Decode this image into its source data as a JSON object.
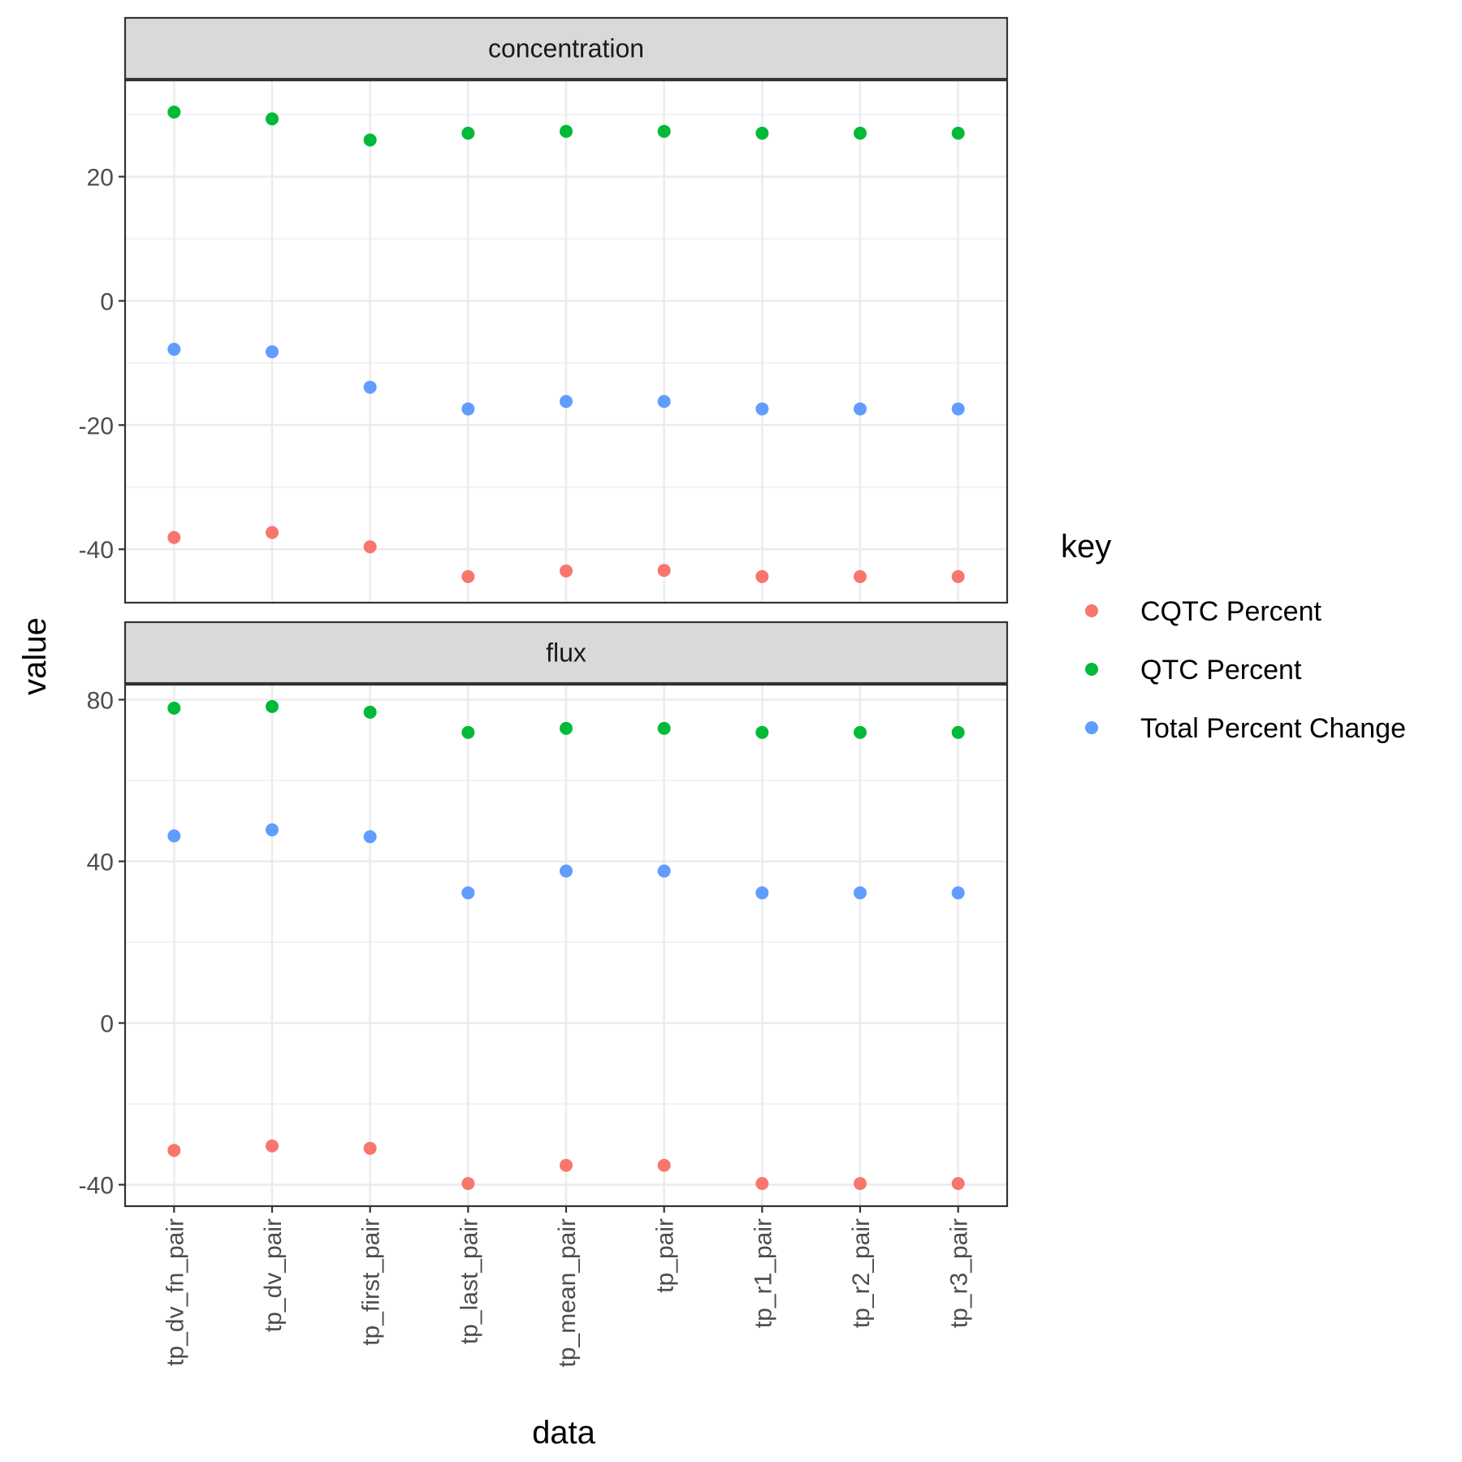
{
  "chart_data": {
    "type": "scatter",
    "xlabel": "data",
    "ylabel": "value",
    "categories": [
      "tp_dv_fn_pair",
      "tp_dv_pair",
      "tp_first_pair",
      "tp_last_pair",
      "tp_mean_pair",
      "tp_pair",
      "tp_r1_pair",
      "tp_r2_pair",
      "tp_r3_pair"
    ],
    "legend": {
      "title": "key",
      "position": "right",
      "entries": [
        {
          "name": "CQTC Percent",
          "color": "#F8766D"
        },
        {
          "name": "QTC Percent",
          "color": "#00BA38"
        },
        {
          "name": "Total Percent Change",
          "color": "#619CFF"
        }
      ]
    },
    "grid": true,
    "facets": [
      {
        "label": "concentration",
        "ylim": [
          -48.6,
          35.5
        ],
        "yticks": [
          20,
          0,
          -20,
          -40
        ],
        "ytick_labels": [
          "20",
          "0",
          "-20",
          "-40"
        ],
        "series": [
          {
            "name": "CQTC Percent",
            "values": [
              -38.1,
              -37.3,
              -39.6,
              -44.4,
              -43.5,
              -43.4,
              -44.4,
              -44.4,
              -44.4
            ]
          },
          {
            "name": "QTC Percent",
            "values": [
              30.4,
              29.3,
              25.9,
              27.0,
              27.3,
              27.3,
              27.0,
              27.0,
              27.0
            ]
          },
          {
            "name": "Total Percent Change",
            "values": [
              -7.8,
              -8.2,
              -13.9,
              -17.4,
              -16.2,
              -16.2,
              -17.4,
              -17.4,
              -17.4
            ]
          }
        ]
      },
      {
        "label": "flux",
        "ylim": [
          -45.3,
          83.7
        ],
        "yticks": [
          80,
          40,
          0,
          -40
        ],
        "ytick_labels": [
          "80",
          "40",
          "0",
          "-40"
        ],
        "series": [
          {
            "name": "CQTC Percent",
            "values": [
              -31.5,
              -30.4,
              -31.0,
              -39.7,
              -35.2,
              -35.2,
              -39.7,
              -39.7,
              -39.7
            ]
          },
          {
            "name": "QTC Percent",
            "values": [
              77.9,
              78.3,
              76.9,
              71.9,
              72.9,
              72.9,
              71.9,
              71.9,
              71.9
            ]
          },
          {
            "name": "Total Percent Change",
            "values": [
              46.3,
              47.8,
              46.1,
              32.2,
              37.6,
              37.6,
              32.2,
              32.2,
              32.2
            ]
          }
        ]
      }
    ]
  }
}
